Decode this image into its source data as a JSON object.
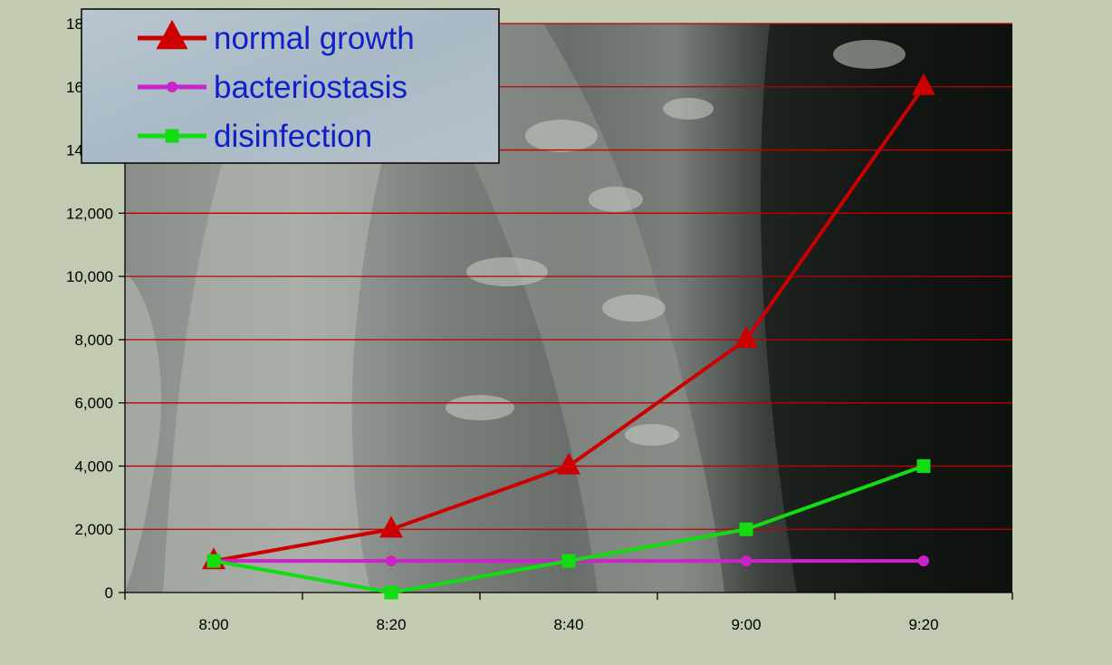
{
  "chart_data": {
    "type": "line",
    "categories": [
      "8:00",
      "8:20",
      "8:40",
      "9:00",
      "9:20"
    ],
    "ylim": [
      0,
      18000
    ],
    "yticks": [
      "0",
      "2,000",
      "4,000",
      "6,000",
      "8,000",
      "10,000",
      "12,000",
      "14,000",
      "16,000",
      "18,000"
    ],
    "ytick_values": [
      0,
      2000,
      4000,
      6000,
      8000,
      10000,
      12000,
      14000,
      16000,
      18000
    ],
    "grid": "horizontal",
    "grid_color": "#c00000",
    "legend_position": "top-left",
    "series": [
      {
        "name": "normal growth",
        "values": [
          1000,
          2000,
          4000,
          8000,
          16000
        ],
        "color": "#cc0000",
        "marker": "triangle"
      },
      {
        "name": "bacteriostasis",
        "values": [
          1000,
          1000,
          1000,
          1000,
          1000
        ],
        "color": "#cc22cc",
        "marker": "circle"
      },
      {
        "name": "disinfection",
        "values": [
          1000,
          0,
          1000,
          2000,
          4000
        ],
        "color": "#11dd11",
        "marker": "square"
      }
    ]
  },
  "colors": {
    "page_background": "#c0cbb2",
    "legend_text": "#1020c8"
  },
  "background_image": "electron micrograph of bacteria (grayscale)"
}
